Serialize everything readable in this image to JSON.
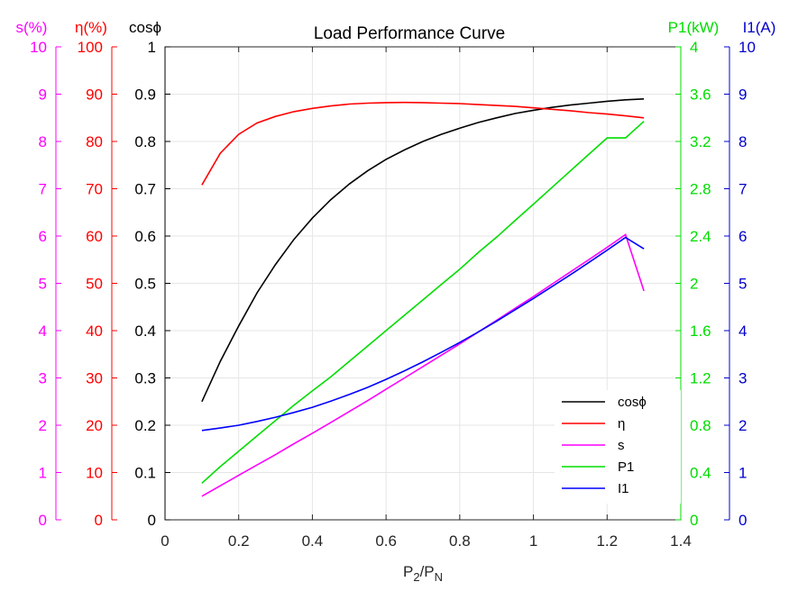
{
  "chart_data": {
    "type": "line",
    "title": "Load Performance Curve",
    "xlabel": {
      "base": "P",
      "sub1": "2",
      "sep": "/P",
      "sub2": "N"
    },
    "xlim": [
      0,
      1.4
    ],
    "xticks": [
      "0",
      "0.2",
      "0.4",
      "0.6",
      "0.8",
      "1",
      "1.2",
      "1.4"
    ],
    "grid": true,
    "legend_position": "bottom-right",
    "x": [
      0.1,
      0.15,
      0.2,
      0.25,
      0.3,
      0.35,
      0.4,
      0.45,
      0.5,
      0.55,
      0.6,
      0.65,
      0.7,
      0.75,
      0.8,
      0.85,
      0.9,
      0.95,
      1.0,
      1.05,
      1.1,
      1.15,
      1.2,
      1.25,
      1.3
    ],
    "axes": [
      {
        "id": "s",
        "label": "s(%)",
        "color": "#ff00ff",
        "side": "left",
        "range": [
          0,
          10
        ],
        "ticks": [
          "0",
          "1",
          "2",
          "3",
          "4",
          "5",
          "6",
          "7",
          "8",
          "9",
          "10"
        ]
      },
      {
        "id": "eta",
        "label": "η(%)",
        "color": "#ff0000",
        "side": "left",
        "range": [
          0,
          100
        ],
        "ticks": [
          "0",
          "10",
          "20",
          "30",
          "40",
          "50",
          "60",
          "70",
          "80",
          "90",
          "100"
        ]
      },
      {
        "id": "cos",
        "label": "cosϕ",
        "color": "#000000",
        "side": "left",
        "range": [
          0,
          1
        ],
        "ticks": [
          "0",
          "0.1",
          "0.2",
          "0.3",
          "0.4",
          "0.5",
          "0.6",
          "0.7",
          "0.8",
          "0.9",
          "1"
        ]
      },
      {
        "id": "p1",
        "label": "P1(kW)",
        "color": "#00dd00",
        "side": "right",
        "range": [
          0,
          4
        ],
        "ticks": [
          "0",
          "0.4",
          "0.8",
          "1.2",
          "1.6",
          "2",
          "2.4",
          "2.8",
          "3.2",
          "3.6",
          "4"
        ]
      },
      {
        "id": "i1",
        "label": "I1(A)",
        "color": "#0000cc",
        "side": "right",
        "range": [
          0,
          10
        ],
        "ticks": [
          "0",
          "1",
          "2",
          "3",
          "4",
          "5",
          "6",
          "7",
          "8",
          "9",
          "10"
        ]
      }
    ],
    "series": [
      {
        "name": "cosϕ",
        "legend": "cosϕ",
        "axis": "cos",
        "color": "#000000",
        "values": [
          0.25,
          0.335,
          0.41,
          0.48,
          0.54,
          0.593,
          0.638,
          0.677,
          0.71,
          0.738,
          0.762,
          0.782,
          0.8,
          0.815,
          0.828,
          0.84,
          0.85,
          0.859,
          0.866,
          0.872,
          0.877,
          0.881,
          0.885,
          0.888,
          0.89
        ]
      },
      {
        "name": "η",
        "legend": "η",
        "axis": "eta",
        "color": "#ff0000",
        "values": [
          70.8,
          77.5,
          81.5,
          83.9,
          85.3,
          86.3,
          87.0,
          87.5,
          87.9,
          88.1,
          88.2,
          88.25,
          88.2,
          88.1,
          88.0,
          87.8,
          87.6,
          87.4,
          87.1,
          86.8,
          86.5,
          86.1,
          85.8,
          85.4,
          85.0
        ]
      },
      {
        "name": "s",
        "legend": "s",
        "axis": "s",
        "color": "#ff00ff",
        "values": [
          0.5,
          0.72,
          0.94,
          1.16,
          1.38,
          1.61,
          1.83,
          2.06,
          2.29,
          2.52,
          2.76,
          3.0,
          3.24,
          3.48,
          3.72,
          3.97,
          4.22,
          4.47,
          4.72,
          4.98,
          5.24,
          5.5,
          5.76,
          6.03,
          4.84
        ]
      },
      {
        "name": "P1",
        "legend": "P1",
        "axis": "p1",
        "color": "#00dd00",
        "values": [
          0.31,
          0.45,
          0.58,
          0.71,
          0.84,
          0.97,
          1.09,
          1.21,
          1.34,
          1.47,
          1.6,
          1.73,
          1.86,
          1.99,
          2.12,
          2.26,
          2.39,
          2.53,
          2.67,
          2.81,
          2.95,
          3.09,
          3.23,
          3.23,
          3.37
        ]
      },
      {
        "name": "I1",
        "legend": "I1",
        "axis": "i1",
        "color": "#0000ff",
        "values": [
          1.89,
          1.94,
          2.0,
          2.08,
          2.17,
          2.27,
          2.38,
          2.51,
          2.65,
          2.8,
          2.97,
          3.15,
          3.34,
          3.54,
          3.75,
          3.97,
          4.2,
          4.44,
          4.68,
          4.93,
          5.18,
          5.44,
          5.7,
          5.97,
          5.73
        ]
      }
    ]
  }
}
